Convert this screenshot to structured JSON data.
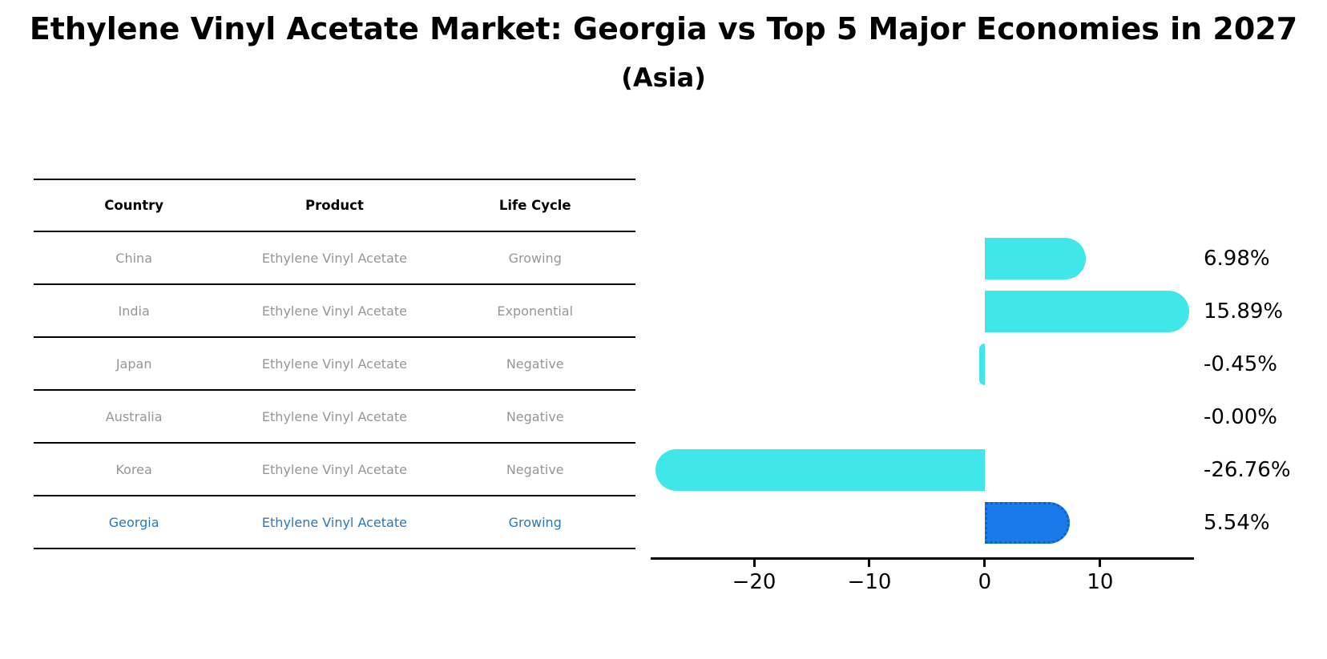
{
  "title": "Ethylene Vinyl Acetate Market: Georgia vs Top 5 Major Economies in 2027",
  "subtitle": "(Asia)",
  "table": {
    "headers": [
      "Country",
      "Product",
      "Life Cycle"
    ],
    "highlight_text_color": "#2878be",
    "rows": [
      {
        "country": "China",
        "product": "Ethylene Vinyl Acetate",
        "life_cycle": "Growing"
      },
      {
        "country": "India",
        "product": "Ethylene Vinyl Acetate",
        "life_cycle": "Exponential"
      },
      {
        "country": "Japan",
        "product": "Ethylene Vinyl Acetate",
        "life_cycle": "Negative"
      },
      {
        "country": "Australia",
        "product": "Ethylene Vinyl Acetate",
        "life_cycle": "Negative"
      },
      {
        "country": "Korea",
        "product": "Ethylene Vinyl Acetate",
        "life_cycle": "Negative"
      },
      {
        "country": "Georgia",
        "product": "Ethylene Vinyl Acetate",
        "life_cycle": "Growing"
      }
    ]
  },
  "chart_data": {
    "type": "bar",
    "orientation": "horizontal",
    "title": "Ethylene Vinyl Acetate Market: Georgia vs Top 5 Major Economies in 2027 (Asia)",
    "categories": [
      "China",
      "India",
      "Japan",
      "Australia",
      "Korea",
      "Georgia"
    ],
    "values": [
      6.98,
      15.89,
      -0.45,
      -0.0,
      -26.76,
      5.54
    ],
    "value_labels": [
      "6.98%",
      "15.89%",
      "-0.45%",
      "-0.00%",
      "-26.76%",
      "5.54%"
    ],
    "unit": "%",
    "xlim": [
      -28.96,
      18.13
    ],
    "xticks": {
      "values": [
        -20,
        -10,
        0,
        10
      ],
      "labels": [
        "−20",
        "−10",
        "0",
        "10"
      ]
    },
    "grid": false,
    "highlight_category": "Georgia",
    "colors": {
      "default_bar": "#40e6e8",
      "highlight_bar": "#1a7ae8",
      "highlight_border": "#0f5fd0",
      "axis": "#000000",
      "label_text": "#000000"
    }
  }
}
